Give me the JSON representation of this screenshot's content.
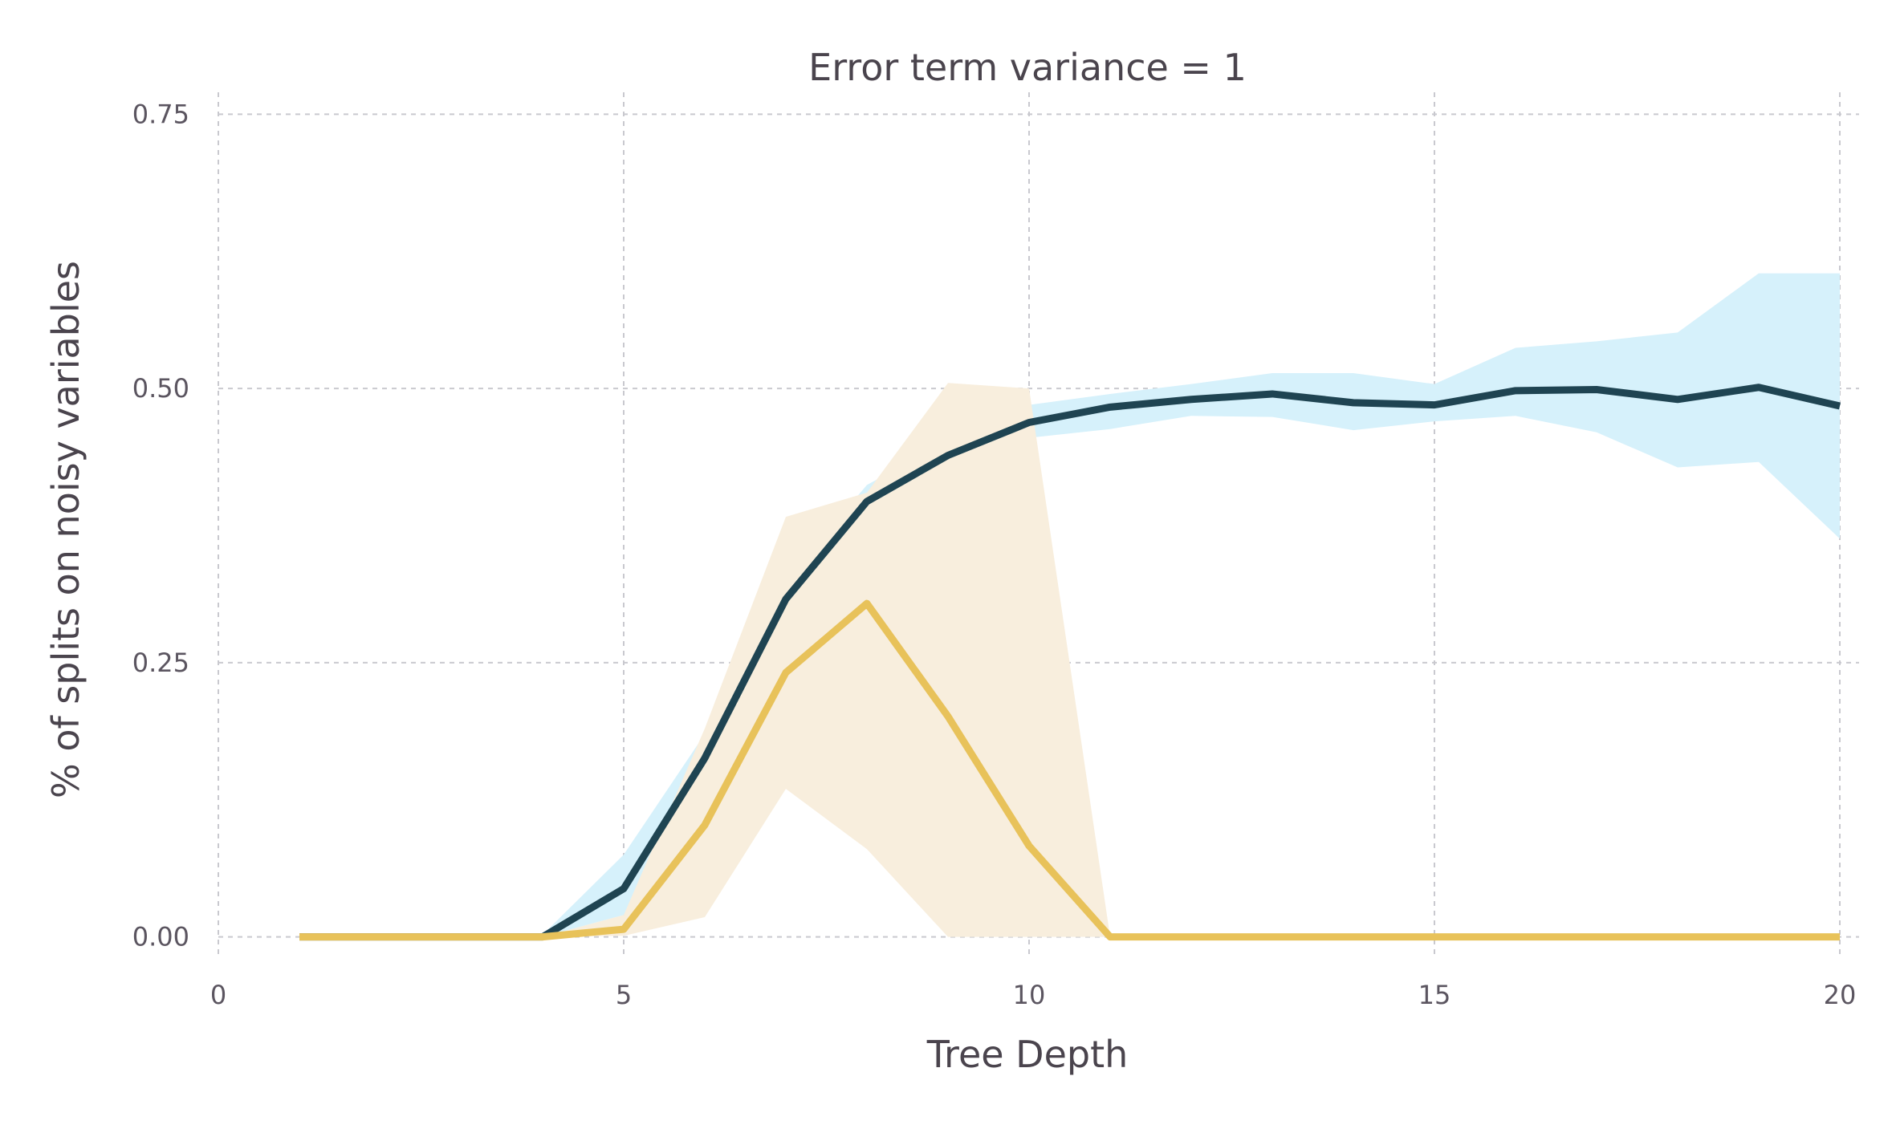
{
  "chart_data": {
    "type": "line",
    "title": "Error term variance = 1",
    "xlabel": "Tree Depth",
    "ylabel": "% of splits on noisy variables",
    "xlim": [
      0,
      20
    ],
    "ylim": [
      -0.02,
      0.77
    ],
    "xticks": [
      0,
      5,
      10,
      15,
      20
    ],
    "xtick_labels": [
      "0",
      "5",
      "10",
      "15",
      "20"
    ],
    "yticks": [
      0,
      0.25,
      0.5,
      0.75
    ],
    "ytick_labels": [
      "0.00",
      "0.25",
      "0.50",
      "0.75"
    ],
    "grid": true,
    "x": [
      1,
      2,
      3,
      4,
      5,
      6,
      7,
      8,
      9,
      10,
      11,
      12,
      13,
      14,
      15,
      16,
      17,
      18,
      19,
      20
    ],
    "series": [
      {
        "color": "#1f4452",
        "band_color": "#d6f1fb",
        "values": [
          0,
          0,
          0,
          0,
          0.044,
          0.163,
          0.308,
          0.397,
          0.439,
          0.469,
          0.483,
          0.49,
          0.495,
          0.487,
          0.485,
          0.498,
          0.499,
          0.49,
          0.501,
          0.484
        ],
        "lower": [
          0,
          0,
          0,
          0,
          0.02,
          0.14,
          0.295,
          0.385,
          0.428,
          0.455,
          0.463,
          0.475,
          0.474,
          0.462,
          0.47,
          0.475,
          0.46,
          0.428,
          0.433,
          0.363
        ],
        "upper": [
          0,
          0,
          0,
          0.002,
          0.075,
          0.185,
          0.325,
          0.412,
          0.452,
          0.485,
          0.495,
          0.504,
          0.514,
          0.514,
          0.504,
          0.537,
          0.543,
          0.551,
          0.605,
          0.605
        ]
      },
      {
        "color": "#e8c25a",
        "band_color": "#f8eedd",
        "values": [
          0,
          0,
          0,
          0,
          0.007,
          0.102,
          0.241,
          0.304,
          0.201,
          0.083,
          0,
          0,
          0,
          0,
          0,
          0,
          0,
          0,
          0,
          0
        ],
        "lower": [
          0,
          0,
          0,
          0,
          0.001,
          0.018,
          0.135,
          0.08,
          0,
          0,
          0,
          0,
          0,
          0,
          0,
          0,
          0,
          0,
          0,
          0
        ],
        "upper": [
          0,
          0,
          0,
          0,
          0.02,
          0.19,
          0.383,
          0.405,
          0.505,
          0.5,
          0,
          0,
          0,
          0,
          0,
          0,
          0,
          0,
          0,
          0
        ]
      }
    ]
  }
}
